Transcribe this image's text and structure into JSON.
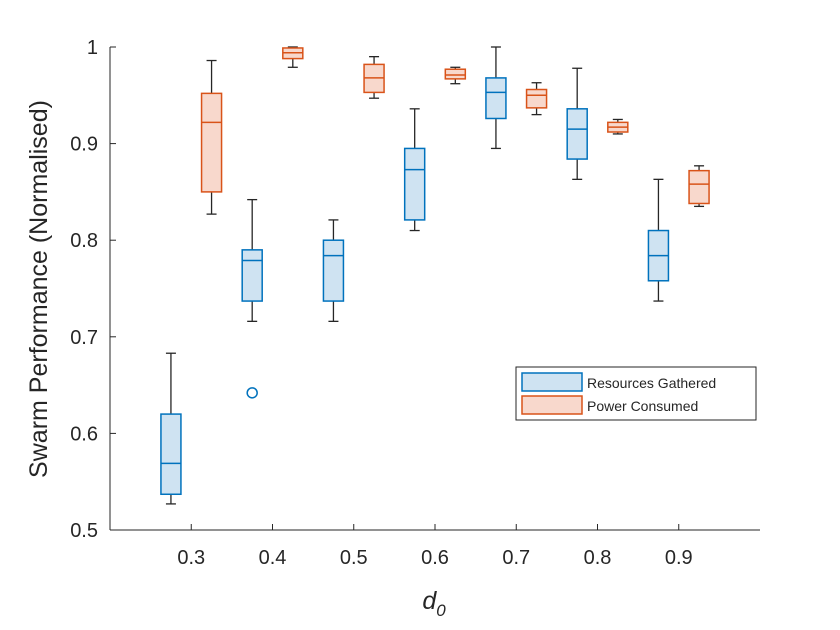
{
  "chart_data": {
    "type": "boxplot",
    "title": "",
    "xlabel": "d",
    "xlabel_subscript": "0",
    "ylabel": "Swarm Performance (Normalised)",
    "xlim": [
      0.2,
      1.0
    ],
    "ylim": [
      0.5,
      1.0
    ],
    "xticks": [
      0.3,
      0.4,
      0.5,
      0.6,
      0.7,
      0.8,
      0.9
    ],
    "xtick_labels": [
      "0.3",
      "0.4",
      "0.5",
      "0.6",
      "0.7",
      "0.8",
      "0.9"
    ],
    "yticks": [
      0.5,
      0.6,
      0.7,
      0.8,
      0.9,
      1.0
    ],
    "ytick_labels": [
      "0.5",
      "0.6",
      "0.7",
      "0.8",
      "0.9",
      "1"
    ],
    "legend_position": "lower-right",
    "series": [
      {
        "name": "Resources Gathered",
        "stroke": "#0072BD",
        "fill": "#cfe3f2",
        "boxes": [
          {
            "x": 0.3,
            "whisker_low": 0.527,
            "q1": 0.537,
            "median": 0.569,
            "q3": 0.62,
            "whisker_high": 0.683,
            "outliers": []
          },
          {
            "x": 0.4,
            "whisker_low": 0.716,
            "q1": 0.737,
            "median": 0.779,
            "q3": 0.79,
            "whisker_high": 0.842,
            "outliers": [
              0.642
            ]
          },
          {
            "x": 0.5,
            "whisker_low": 0.716,
            "q1": 0.737,
            "median": 0.784,
            "q3": 0.8,
            "whisker_high": 0.821,
            "outliers": []
          },
          {
            "x": 0.6,
            "whisker_low": 0.81,
            "q1": 0.821,
            "median": 0.873,
            "q3": 0.895,
            "whisker_high": 0.936,
            "outliers": []
          },
          {
            "x": 0.7,
            "whisker_low": 0.895,
            "q1": 0.926,
            "median": 0.953,
            "q3": 0.968,
            "whisker_high": 1.0,
            "outliers": []
          },
          {
            "x": 0.8,
            "whisker_low": 0.863,
            "q1": 0.884,
            "median": 0.915,
            "q3": 0.936,
            "whisker_high": 0.978,
            "outliers": []
          },
          {
            "x": 0.9,
            "whisker_low": 0.737,
            "q1": 0.758,
            "median": 0.784,
            "q3": 0.81,
            "whisker_high": 0.863,
            "outliers": []
          }
        ]
      },
      {
        "name": "Power Consumed",
        "stroke": "#D95319",
        "fill": "#f8d8cc",
        "boxes": [
          {
            "x": 0.3,
            "whisker_low": 0.827,
            "q1": 0.85,
            "median": 0.922,
            "q3": 0.952,
            "whisker_high": 0.986,
            "outliers": []
          },
          {
            "x": 0.4,
            "whisker_low": 0.979,
            "q1": 0.988,
            "median": 0.994,
            "q3": 0.999,
            "whisker_high": 1.0,
            "outliers": []
          },
          {
            "x": 0.5,
            "whisker_low": 0.947,
            "q1": 0.953,
            "median": 0.968,
            "q3": 0.982,
            "whisker_high": 0.99,
            "outliers": []
          },
          {
            "x": 0.6,
            "whisker_low": 0.962,
            "q1": 0.967,
            "median": 0.971,
            "q3": 0.977,
            "whisker_high": 0.979,
            "outliers": []
          },
          {
            "x": 0.7,
            "whisker_low": 0.93,
            "q1": 0.937,
            "median": 0.95,
            "q3": 0.956,
            "whisker_high": 0.963,
            "outliers": []
          },
          {
            "x": 0.8,
            "whisker_low": 0.91,
            "q1": 0.912,
            "median": 0.917,
            "q3": 0.922,
            "whisker_high": 0.925,
            "outliers": []
          },
          {
            "x": 0.9,
            "whisker_low": 0.835,
            "q1": 0.838,
            "median": 0.858,
            "q3": 0.872,
            "whisker_high": 0.877,
            "outliers": []
          }
        ]
      }
    ]
  }
}
